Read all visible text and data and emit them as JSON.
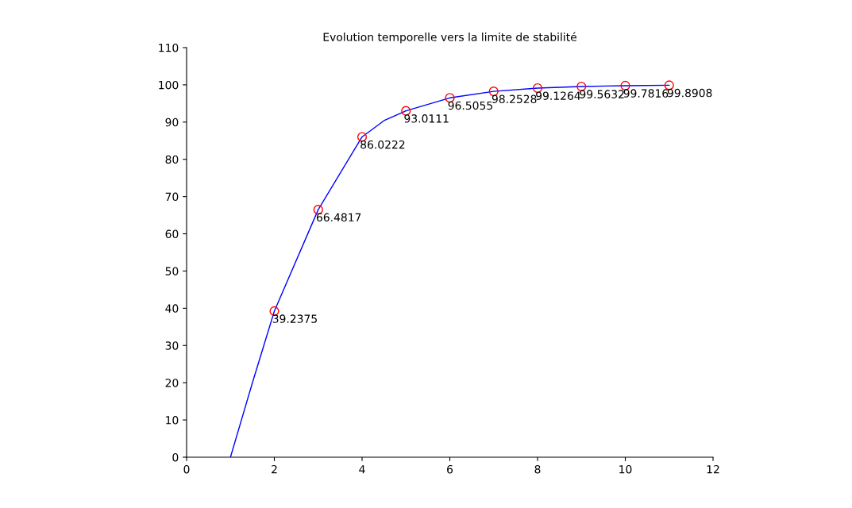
{
  "chart_data": {
    "type": "line",
    "title": "Evolution temporelle vers la limite de stabilité",
    "xlim": [
      0,
      12
    ],
    "ylim": [
      0,
      110
    ],
    "xticks": [
      0,
      2,
      4,
      6,
      8,
      10,
      12
    ],
    "yticks": [
      0,
      10,
      20,
      30,
      40,
      50,
      60,
      70,
      80,
      90,
      100,
      110
    ],
    "grid": false,
    "series": [
      {
        "color": "#0000ff",
        "marker": "none",
        "x": [
          1,
          1.5,
          2,
          3,
          4,
          4.5,
          5,
          6,
          7,
          8,
          9,
          10,
          11
        ],
        "values": [
          0,
          20,
          39.2375,
          66.4817,
          86.0222,
          90.4,
          93.0111,
          96.5055,
          98.2528,
          99.1264,
          99.5632,
          99.7816,
          99.8908
        ]
      },
      {
        "type": "scatter",
        "color": "#ff0000",
        "marker": "circle",
        "data_labels": true,
        "x": [
          2,
          3,
          4,
          5,
          6,
          7,
          8,
          9,
          10,
          11
        ],
        "values": [
          39.2375,
          66.4817,
          86.0222,
          93.0111,
          96.5055,
          98.2528,
          99.1264,
          99.5632,
          99.7816,
          99.8908
        ]
      }
    ]
  }
}
